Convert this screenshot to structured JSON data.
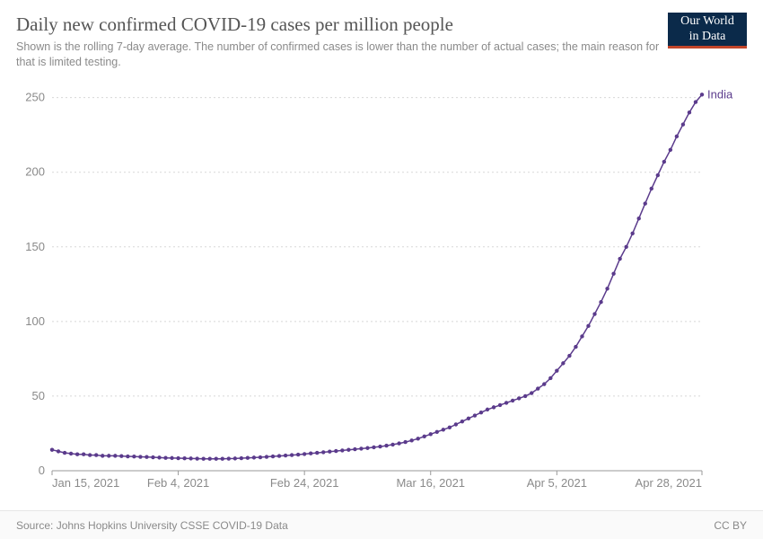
{
  "header": {
    "title": "Daily new confirmed COVID-19 cases per million people",
    "subtitle": "Shown is the rolling 7-day average. The number of confirmed cases is lower than the number of actual cases; the main reason for that is limited testing.",
    "logo_line1": "Our World",
    "logo_line2": "in Data"
  },
  "footer": {
    "source": "Source: Johns Hopkins University CSSE COVID-19 Data",
    "license": "CC BY"
  },
  "chart": {
    "type": "line",
    "background_color": "#ffffff",
    "grid_color": "#d8d8d8",
    "grid_dash": "2,3",
    "axis_color": "#999999",
    "axis_label_color": "#8a8a8a",
    "axis_fontsize": 13,
    "series_label": "India",
    "series_label_color": "#5b3b8c",
    "line_color": "#5b3b8c",
    "line_width": 1.5,
    "marker_color": "#5b3b8c",
    "marker_radius": 2.2,
    "ylim": [
      0,
      260
    ],
    "yticks": [
      0,
      50,
      100,
      150,
      200,
      250
    ],
    "xlim_days": [
      0,
      103
    ],
    "xticks": [
      {
        "day": 0,
        "label": "Jan 15, 2021"
      },
      {
        "day": 20,
        "label": "Feb 4, 2021"
      },
      {
        "day": 40,
        "label": "Feb 24, 2021"
      },
      {
        "day": 60,
        "label": "Mar 16, 2021"
      },
      {
        "day": 80,
        "label": "Apr 5, 2021"
      },
      {
        "day": 103,
        "label": "Apr 28, 2021"
      }
    ],
    "data": [
      {
        "day": 0,
        "y": 14
      },
      {
        "day": 1,
        "y": 13
      },
      {
        "day": 2,
        "y": 12
      },
      {
        "day": 3,
        "y": 11.5
      },
      {
        "day": 4,
        "y": 11
      },
      {
        "day": 5,
        "y": 11
      },
      {
        "day": 6,
        "y": 10.5
      },
      {
        "day": 7,
        "y": 10.5
      },
      {
        "day": 8,
        "y": 10
      },
      {
        "day": 9,
        "y": 10
      },
      {
        "day": 10,
        "y": 10
      },
      {
        "day": 11,
        "y": 9.8
      },
      {
        "day": 12,
        "y": 9.6
      },
      {
        "day": 13,
        "y": 9.5
      },
      {
        "day": 14,
        "y": 9.3
      },
      {
        "day": 15,
        "y": 9.2
      },
      {
        "day": 16,
        "y": 9
      },
      {
        "day": 17,
        "y": 8.8
      },
      {
        "day": 18,
        "y": 8.6
      },
      {
        "day": 19,
        "y": 8.5
      },
      {
        "day": 20,
        "y": 8.4
      },
      {
        "day": 21,
        "y": 8.3
      },
      {
        "day": 22,
        "y": 8.2
      },
      {
        "day": 23,
        "y": 8.1
      },
      {
        "day": 24,
        "y": 8
      },
      {
        "day": 25,
        "y": 8
      },
      {
        "day": 26,
        "y": 8
      },
      {
        "day": 27,
        "y": 8
      },
      {
        "day": 28,
        "y": 8.1
      },
      {
        "day": 29,
        "y": 8.2
      },
      {
        "day": 30,
        "y": 8.4
      },
      {
        "day": 31,
        "y": 8.6
      },
      {
        "day": 32,
        "y": 8.8
      },
      {
        "day": 33,
        "y": 9
      },
      {
        "day": 34,
        "y": 9.3
      },
      {
        "day": 35,
        "y": 9.6
      },
      {
        "day": 36,
        "y": 9.9
      },
      {
        "day": 37,
        "y": 10.2
      },
      {
        "day": 38,
        "y": 10.5
      },
      {
        "day": 39,
        "y": 10.8
      },
      {
        "day": 40,
        "y": 11.2
      },
      {
        "day": 41,
        "y": 11.6
      },
      {
        "day": 42,
        "y": 12
      },
      {
        "day": 43,
        "y": 12.4
      },
      {
        "day": 44,
        "y": 12.8
      },
      {
        "day": 45,
        "y": 13.2
      },
      {
        "day": 46,
        "y": 13.6
      },
      {
        "day": 47,
        "y": 14
      },
      {
        "day": 48,
        "y": 14.4
      },
      {
        "day": 49,
        "y": 14.8
      },
      {
        "day": 50,
        "y": 15.2
      },
      {
        "day": 51,
        "y": 15.7
      },
      {
        "day": 52,
        "y": 16.2
      },
      {
        "day": 53,
        "y": 16.8
      },
      {
        "day": 54,
        "y": 17.5
      },
      {
        "day": 55,
        "y": 18.3
      },
      {
        "day": 56,
        "y": 19.2
      },
      {
        "day": 57,
        "y": 20.3
      },
      {
        "day": 58,
        "y": 21.5
      },
      {
        "day": 59,
        "y": 23
      },
      {
        "day": 60,
        "y": 24.5
      },
      {
        "day": 61,
        "y": 26
      },
      {
        "day": 62,
        "y": 27.5
      },
      {
        "day": 63,
        "y": 29
      },
      {
        "day": 64,
        "y": 31
      },
      {
        "day": 65,
        "y": 33
      },
      {
        "day": 66,
        "y": 35
      },
      {
        "day": 67,
        "y": 37
      },
      {
        "day": 68,
        "y": 39
      },
      {
        "day": 69,
        "y": 41
      },
      {
        "day": 70,
        "y": 42.5
      },
      {
        "day": 71,
        "y": 44
      },
      {
        "day": 72,
        "y": 45.5
      },
      {
        "day": 73,
        "y": 47
      },
      {
        "day": 74,
        "y": 48.5
      },
      {
        "day": 75,
        "y": 50
      },
      {
        "day": 76,
        "y": 52
      },
      {
        "day": 77,
        "y": 55
      },
      {
        "day": 78,
        "y": 58
      },
      {
        "day": 79,
        "y": 62
      },
      {
        "day": 80,
        "y": 67
      },
      {
        "day": 81,
        "y": 72
      },
      {
        "day": 82,
        "y": 77
      },
      {
        "day": 83,
        "y": 83
      },
      {
        "day": 84,
        "y": 90
      },
      {
        "day": 85,
        "y": 97
      },
      {
        "day": 86,
        "y": 105
      },
      {
        "day": 87,
        "y": 113
      },
      {
        "day": 88,
        "y": 122
      },
      {
        "day": 89,
        "y": 132
      },
      {
        "day": 90,
        "y": 142
      },
      {
        "day": 91,
        "y": 150
      },
      {
        "day": 92,
        "y": 159
      },
      {
        "day": 93,
        "y": 169
      },
      {
        "day": 94,
        "y": 179
      },
      {
        "day": 95,
        "y": 189
      },
      {
        "day": 96,
        "y": 198
      },
      {
        "day": 97,
        "y": 207
      },
      {
        "day": 98,
        "y": 215
      },
      {
        "day": 99,
        "y": 224
      },
      {
        "day": 100,
        "y": 232
      },
      {
        "day": 101,
        "y": 240
      },
      {
        "day": 102,
        "y": 247
      },
      {
        "day": 103,
        "y": 252
      }
    ]
  }
}
